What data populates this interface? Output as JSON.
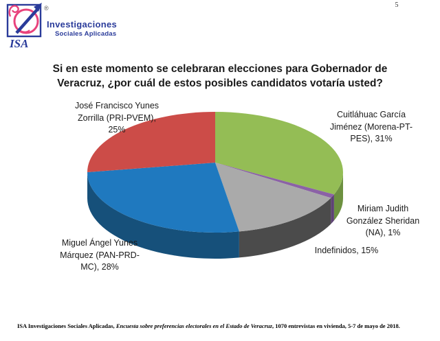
{
  "page_number": "5",
  "logo": {
    "isa_text": "ISA",
    "name_line1": "Investigaciones",
    "name_line2": "Sociales Aplicadas",
    "registered_mark": "®",
    "brand_blue": "#2A3B9A",
    "brand_pink": "#E8427C"
  },
  "title": {
    "line1": "Si en este momento se celebraran elecciones para Gobernador de",
    "line2": "Veracruz, ¿por cuál de estos posibles candidatos votaría usted?"
  },
  "chart_data": {
    "type": "pie",
    "style": "3d",
    "start_angle_deg": 0,
    "direction": "clockwise",
    "unit": "%",
    "title": "Si en este momento se celebraran elecciones para Gobernador de Veracruz, ¿por cuál de estos posibles candidatos votaría usted?",
    "slices": [
      {
        "name": "Cuitláhuac García Jiménez (Morena-PT-PES)",
        "value": 31,
        "color": "#94BD55",
        "side_color": "#6D9140",
        "callout": "Cuitláhuac García\nJiménez (Morena-PT-\nPES), 31%"
      },
      {
        "name": "Miriam Judith González Sheridan (NA)",
        "value": 1,
        "color": "#8B62A6",
        "side_color": "#5E4374",
        "callout": "Miriam Judith\nGonzález Sheridan\n(NA), 1%"
      },
      {
        "name": "Indefinidos",
        "value": 15,
        "color": "#AAAAAA",
        "side_color": "#4B4B4B",
        "callout": "Indefinidos, 15%"
      },
      {
        "name": "Miguel Ángel Yunes Márquez (PAN-PRD-MC)",
        "value": 28,
        "color": "#1F79BF",
        "side_color": "#16507A",
        "callout": "Miguel Ángel Yunes\nMárquez (PAN-PRD-\nMC), 28%"
      },
      {
        "name": "José Francisco Yunes Zorrilla (PRI-PVEM)",
        "value": 25,
        "color": "#CC4C48",
        "side_color": "#943732",
        "callout": "José Francisco Yunes\nZorrilla (PRI-PVEM),\n25%"
      }
    ]
  },
  "footer": {
    "text_before_italic": "ISA Investigaciones Sociales Aplicadas, ",
    "italic_text": "Encuesta sobre preferencias electorales en el Estado de Veracruz",
    "text_after_italic": ", 1070 entrevistas en vivienda, 5-7 de mayo de 2018."
  }
}
